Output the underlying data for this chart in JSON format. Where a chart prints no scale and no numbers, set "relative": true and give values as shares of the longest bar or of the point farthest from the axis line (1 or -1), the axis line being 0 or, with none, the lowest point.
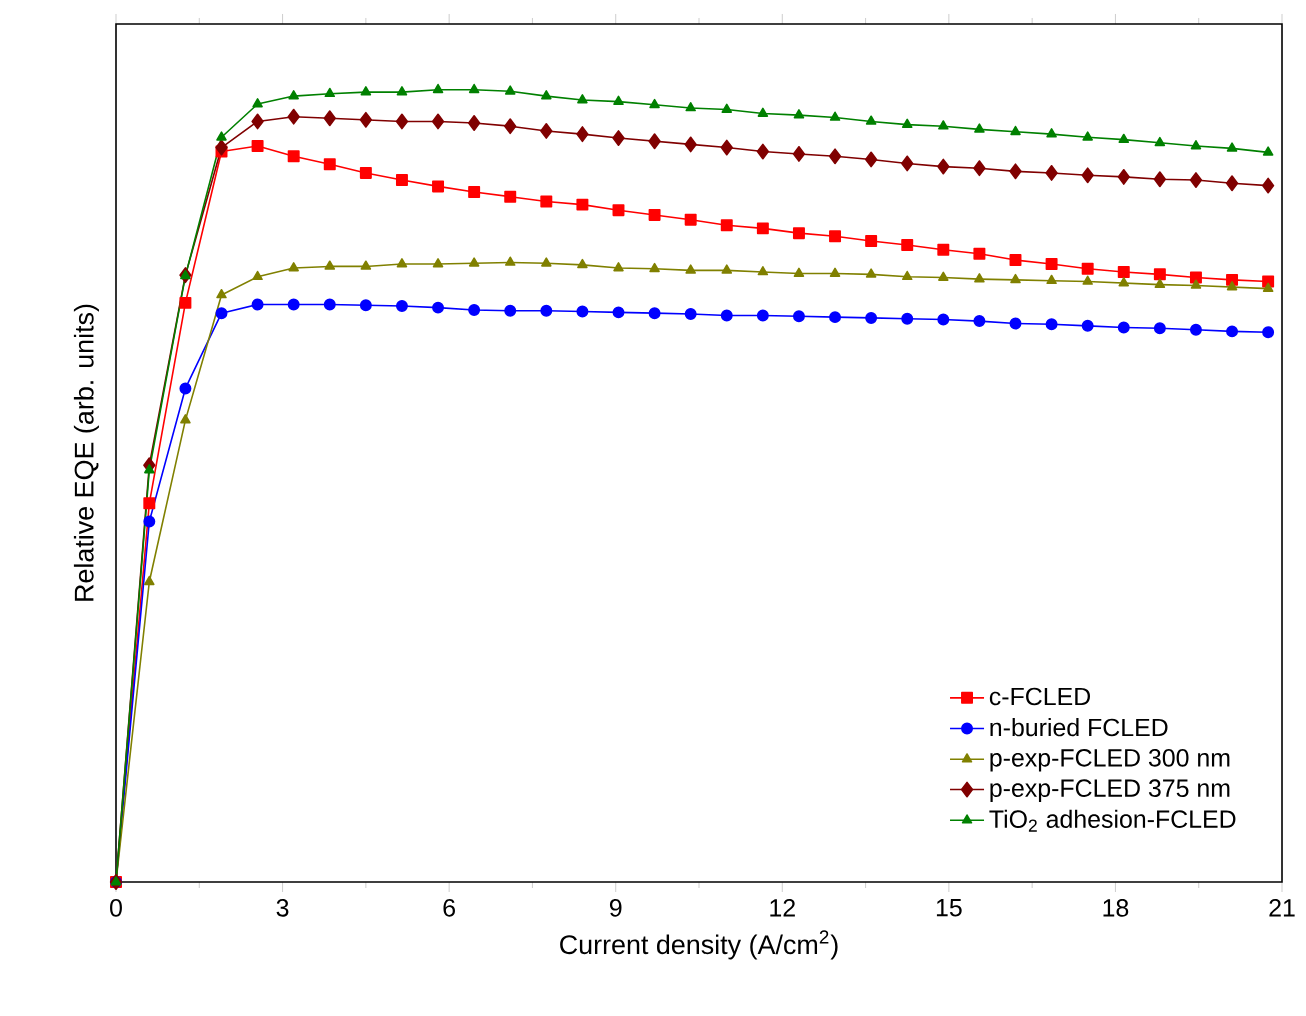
{
  "chart_data": {
    "type": "line",
    "relative": true,
    "xlabel": "Current density (A/cm$^{2}$)",
    "ylabel": "Relative EQE (arb. units)",
    "x": [
      0,
      0.6,
      1.25,
      1.9,
      2.55,
      3.2,
      3.85,
      4.5,
      5.15,
      5.8,
      6.45,
      7.1,
      7.75,
      8.4,
      9.05,
      9.7,
      10.35,
      11.0,
      11.65,
      12.3,
      12.95,
      13.6,
      14.25,
      14.9,
      15.55,
      16.2,
      16.85,
      17.5,
      18.15,
      18.8,
      19.45,
      20.1,
      20.75
    ],
    "xlim": [
      0,
      21
    ],
    "xticks": [
      0,
      3,
      6,
      9,
      12,
      15,
      18,
      21
    ],
    "legend": "bottom right",
    "line_style": "solid",
    "series": [
      {
        "name": "c-FCLED",
        "color": "#ff0000",
        "marker": "square",
        "values": [
          0,
          0.478,
          0.731,
          0.922,
          0.929,
          0.916,
          0.906,
          0.895,
          0.886,
          0.878,
          0.871,
          0.865,
          0.859,
          0.855,
          0.848,
          0.842,
          0.836,
          0.829,
          0.825,
          0.819,
          0.815,
          0.809,
          0.804,
          0.798,
          0.793,
          0.785,
          0.78,
          0.774,
          0.77,
          0.767,
          0.763,
          0.76,
          0.758
        ]
      },
      {
        "name": "n-buried FCLED",
        "color": "#0000ff",
        "marker": "circle",
        "values": [
          0,
          0.455,
          0.623,
          0.718,
          0.729,
          0.729,
          0.729,
          0.728,
          0.727,
          0.725,
          0.722,
          0.721,
          0.721,
          0.72,
          0.719,
          0.718,
          0.717,
          0.715,
          0.715,
          0.714,
          0.713,
          0.712,
          0.711,
          0.71,
          0.708,
          0.705,
          0.704,
          0.702,
          0.7,
          0.699,
          0.697,
          0.695,
          0.694
        ]
      },
      {
        "name": "p-exp-FCLED 300 nm",
        "color": "#808000",
        "marker": "triangle",
        "values": [
          0,
          0.379,
          0.583,
          0.741,
          0.764,
          0.775,
          0.777,
          0.777,
          0.78,
          0.78,
          0.781,
          0.782,
          0.781,
          0.779,
          0.775,
          0.774,
          0.772,
          0.772,
          0.77,
          0.768,
          0.768,
          0.767,
          0.764,
          0.763,
          0.761,
          0.76,
          0.759,
          0.758,
          0.756,
          0.754,
          0.753,
          0.751,
          0.749
        ]
      },
      {
        "name": "p-exp-FCLED 375 nm",
        "color": "#800000",
        "marker": "diamond",
        "values": [
          0,
          0.526,
          0.766,
          0.927,
          0.96,
          0.966,
          0.964,
          0.962,
          0.96,
          0.96,
          0.958,
          0.954,
          0.948,
          0.944,
          0.939,
          0.935,
          0.931,
          0.927,
          0.922,
          0.919,
          0.916,
          0.912,
          0.907,
          0.903,
          0.901,
          0.897,
          0.895,
          0.892,
          0.89,
          0.887,
          0.886,
          0.882,
          0.879
        ]
      },
      {
        "name": "TiO$_{2}$ adhesion-FCLED",
        "color": "#008000",
        "marker": "triangle",
        "values": [
          0,
          0.52,
          0.765,
          0.94,
          0.982,
          0.992,
          0.995,
          0.997,
          0.997,
          1,
          1,
          0.998,
          0.992,
          0.987,
          0.985,
          0.981,
          0.977,
          0.975,
          0.97,
          0.968,
          0.965,
          0.96,
          0.956,
          0.954,
          0.95,
          0.947,
          0.944,
          0.94,
          0.937,
          0.933,
          0.929,
          0.926,
          0.921
        ]
      }
    ]
  }
}
